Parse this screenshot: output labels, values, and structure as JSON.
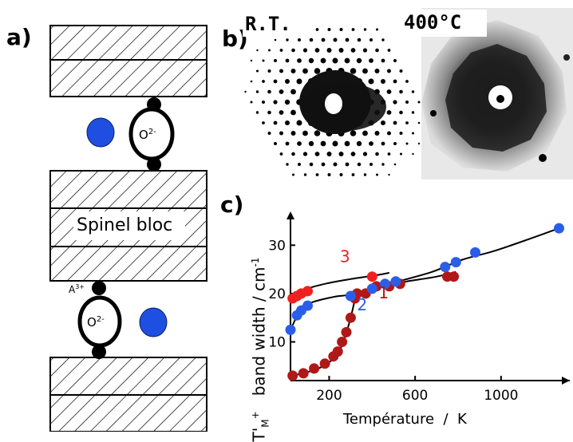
{
  "panels": {
    "a": {
      "label": "a)",
      "spinel_text": "Spinel bloc",
      "oxygen_label": "O",
      "oxygen_charge": "2-",
      "cation_label": "A",
      "cation_charge": "3+",
      "colors": {
        "ion": "#1f4fe0",
        "ink": "#000000"
      }
    },
    "b": {
      "label": "b)",
      "left_caption": "R.T.",
      "right_caption": "400°C"
    },
    "c": {
      "label": "c)"
    }
  },
  "chart_data": {
    "type": "scatter",
    "xlabel": "Température  /  K",
    "ylabel_unit": "cm",
    "ylabel_unit_exp": "-1",
    "ylabel_main": "band width  /",
    "ylabel_sym": "T'",
    "ylabel_sym_sub": "M",
    "ylabel_sym_sup": "+",
    "xlim": [
      20,
      1320
    ],
    "ylim": [
      2,
      36
    ],
    "xticks": [
      200,
      600,
      1000
    ],
    "yticks": [
      10,
      20,
      30
    ],
    "series": [
      {
        "name": "1",
        "color": "#b01818",
        "points": [
          [
            30,
            3
          ],
          [
            80,
            3.5
          ],
          [
            130,
            4.5
          ],
          [
            180,
            5.5
          ],
          [
            220,
            7
          ],
          [
            240,
            8
          ],
          [
            260,
            10
          ],
          [
            280,
            12
          ],
          [
            300,
            15
          ],
          [
            320,
            19
          ],
          [
            330,
            20
          ],
          [
            370,
            20
          ],
          [
            420,
            21.5
          ],
          [
            480,
            21.5
          ],
          [
            530,
            22
          ],
          [
            750,
            23.5
          ],
          [
            780,
            23.5
          ]
        ],
        "curve": [
          [
            30,
            3
          ],
          [
            150,
            4.5
          ],
          [
            230,
            7
          ],
          [
            270,
            10.5
          ],
          [
            300,
            15
          ],
          [
            325,
            19.5
          ],
          [
            345,
            20.3
          ],
          [
            420,
            21.3
          ],
          [
            520,
            22
          ],
          [
            560,
            22.5
          ],
          [
            700,
            23.5
          ],
          [
            790,
            24.5
          ]
        ]
      },
      {
        "name": "2",
        "color": "#2a5ee8",
        "points": [
          [
            20,
            12.5
          ],
          [
            50,
            15.5
          ],
          [
            70,
            16.5
          ],
          [
            100,
            17.5
          ],
          [
            300,
            19.5
          ],
          [
            400,
            21
          ],
          [
            460,
            22
          ],
          [
            510,
            22.5
          ],
          [
            740,
            25.5
          ],
          [
            790,
            26.5
          ],
          [
            880,
            28.5
          ],
          [
            1270,
            33.5
          ]
        ],
        "curve": [
          [
            20,
            12.5
          ],
          [
            60,
            16
          ],
          [
            110,
            18
          ],
          [
            220,
            19.3
          ],
          [
            300,
            19.8
          ],
          [
            420,
            21.3
          ],
          [
            520,
            22.5
          ],
          [
            680,
            24.5
          ],
          [
            820,
            27
          ],
          [
            960,
            28.7
          ],
          [
            1100,
            30.8
          ],
          [
            1270,
            33.5
          ]
        ]
      },
      {
        "name": "3",
        "color": "#f02020",
        "points": [
          [
            30,
            19
          ],
          [
            50,
            19.5
          ],
          [
            70,
            20
          ],
          [
            100,
            20.5
          ],
          [
            400,
            23.5
          ]
        ],
        "curve": [
          [
            30,
            19
          ],
          [
            100,
            21
          ],
          [
            200,
            22.2
          ],
          [
            300,
            23
          ],
          [
            420,
            23.8
          ],
          [
            480,
            24.3
          ]
        ]
      }
    ]
  }
}
